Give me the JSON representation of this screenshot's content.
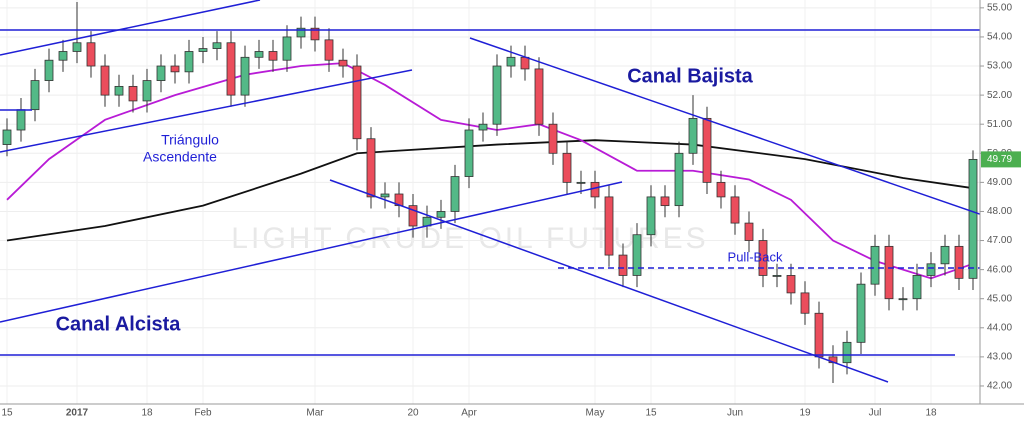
{
  "chart_data": {
    "type": "candlestick",
    "watermark": "LIGHT CRUDE OIL FUTURES",
    "categories": [
      "15",
      null,
      null,
      null,
      null,
      "2017",
      null,
      null,
      null,
      null,
      "18",
      null,
      null,
      null,
      "Feb",
      null,
      null,
      null,
      null,
      null,
      null,
      null,
      "Mar",
      null,
      null,
      null,
      null,
      null,
      null,
      "20",
      null,
      null,
      null,
      "Apr",
      null,
      null,
      null,
      null,
      null,
      null,
      null,
      null,
      "May",
      null,
      null,
      null,
      "15",
      null,
      null,
      null,
      null,
      null,
      "Jun",
      null,
      null,
      null,
      null,
      "19",
      null,
      null,
      null,
      null,
      "Jul",
      null,
      null,
      null,
      "18",
      null,
      null,
      null
    ],
    "open": [
      50.3,
      50.8,
      51.5,
      52.5,
      53.2,
      53.5,
      53.8,
      53.0,
      52.0,
      52.3,
      51.8,
      52.5,
      53.0,
      52.8,
      53.5,
      53.6,
      53.8,
      52.0,
      53.3,
      53.5,
      53.2,
      54.0,
      54.3,
      53.9,
      53.2,
      53.0,
      50.5,
      48.5,
      48.6,
      48.2,
      47.5,
      47.8,
      48.0,
      49.2,
      50.8,
      51.0,
      53.0,
      53.3,
      52.9,
      51.0,
      50.0,
      49.0,
      49.0,
      48.5,
      46.5,
      45.8,
      47.2,
      48.5,
      48.2,
      50.0,
      51.2,
      49.0,
      48.5,
      47.6,
      47.0,
      45.8,
      45.8,
      45.2,
      44.5,
      43.0,
      42.8,
      43.5,
      45.5,
      46.8,
      45.0,
      45.0,
      45.8,
      46.2,
      46.8,
      45.7
    ],
    "high": [
      51.2,
      51.9,
      52.9,
      53.6,
      53.9,
      55.2,
      54.2,
      53.4,
      52.7,
      52.7,
      52.9,
      53.4,
      53.4,
      53.9,
      54.0,
      54.2,
      54.2,
      53.7,
      53.9,
      53.9,
      54.4,
      54.7,
      54.7,
      54.3,
      53.6,
      53.4,
      50.9,
      49.0,
      49.0,
      48.6,
      48.2,
      48.4,
      49.6,
      51.2,
      51.4,
      53.4,
      53.7,
      53.7,
      53.3,
      51.4,
      50.4,
      49.4,
      49.4,
      48.9,
      46.9,
      47.6,
      48.9,
      48.9,
      50.4,
      52.0,
      51.6,
      49.4,
      48.9,
      48.0,
      47.4,
      46.2,
      46.2,
      45.6,
      44.9,
      43.4,
      43.9,
      45.9,
      47.2,
      47.2,
      45.4,
      46.2,
      46.6,
      47.2,
      47.2,
      50.1
    ],
    "low": [
      49.9,
      50.4,
      51.1,
      52.1,
      52.8,
      53.1,
      52.6,
      51.6,
      51.6,
      51.4,
      51.4,
      52.1,
      52.4,
      52.4,
      53.1,
      53.2,
      51.6,
      51.6,
      52.9,
      52.8,
      52.8,
      53.6,
      53.5,
      52.8,
      52.6,
      50.1,
      48.1,
      48.1,
      47.8,
      47.1,
      47.1,
      47.4,
      47.6,
      48.8,
      50.4,
      50.6,
      52.6,
      52.5,
      50.6,
      49.6,
      48.6,
      48.6,
      48.1,
      46.1,
      45.4,
      45.4,
      46.8,
      47.8,
      47.8,
      49.6,
      48.6,
      48.1,
      47.2,
      46.6,
      45.4,
      45.4,
      44.8,
      44.1,
      42.6,
      42.1,
      42.4,
      43.1,
      45.1,
      44.6,
      44.6,
      44.6,
      45.4,
      45.8,
      45.3,
      45.3
    ],
    "close": [
      50.8,
      51.5,
      52.5,
      53.2,
      53.5,
      53.8,
      53.0,
      52.0,
      52.3,
      51.8,
      52.5,
      53.0,
      52.8,
      53.5,
      53.6,
      53.8,
      52.0,
      53.3,
      53.5,
      53.2,
      54.0,
      54.3,
      53.9,
      53.2,
      53.0,
      50.5,
      48.5,
      48.6,
      48.2,
      47.5,
      47.8,
      48.0,
      49.2,
      50.8,
      51.0,
      53.0,
      53.3,
      52.9,
      51.0,
      50.0,
      49.0,
      49.0,
      48.5,
      46.5,
      45.8,
      47.2,
      48.5,
      48.2,
      50.0,
      51.2,
      49.0,
      48.5,
      47.6,
      47.0,
      45.8,
      45.8,
      45.2,
      44.5,
      43.0,
      42.8,
      43.5,
      45.5,
      46.8,
      45.0,
      45.0,
      45.8,
      46.2,
      46.8,
      45.7,
      49.79
    ],
    "up_color": "#53b987",
    "down_color": "#eb4d5c",
    "last_color": "#4caf50",
    "overlays": [
      {
        "color": "#111111",
        "x": [
          0,
          7,
          14,
          21,
          25,
          35,
          42,
          49,
          57,
          64,
          69
        ],
        "values": [
          47.0,
          47.5,
          48.2,
          49.3,
          50.0,
          50.3,
          50.45,
          50.3,
          49.8,
          49.15,
          48.8
        ]
      },
      {
        "color": "#b81bd6",
        "x": [
          0,
          3,
          7,
          12,
          17,
          21,
          24,
          27,
          31,
          35,
          38,
          41,
          45,
          49,
          53,
          56,
          59,
          62,
          66,
          69
        ],
        "values": [
          48.4,
          49.8,
          51.15,
          52.0,
          52.7,
          53.0,
          53.1,
          52.35,
          51.15,
          50.8,
          51.0,
          50.45,
          49.4,
          49.4,
          49.1,
          48.4,
          47.0,
          46.3,
          45.7,
          46.2
        ]
      }
    ],
    "annotations": [
      "Triángulo",
      "Ascendente",
      "Canal Bajista",
      "Canal Alcista",
      "Pull-Back"
    ],
    "ylim": [
      41.38,
      55.27
    ],
    "yticks": [
      {
        "value": 42,
        "label": "42.00"
      },
      {
        "value": 43,
        "label": "43.00"
      },
      {
        "value": 44,
        "label": "44.00"
      },
      {
        "value": 45,
        "label": "45.00"
      },
      {
        "value": 46,
        "label": "46.00"
      },
      {
        "value": 47,
        "label": "47.00"
      },
      {
        "value": 48,
        "label": "48.00"
      },
      {
        "value": 49,
        "label": "49.00"
      },
      {
        "value": 50,
        "label": "50.00"
      },
      {
        "value": 51,
        "label": "51.00"
      },
      {
        "value": 52,
        "label": "52.00"
      },
      {
        "value": 53,
        "label": "53.00"
      },
      {
        "value": 54,
        "label": "54.00"
      },
      {
        "value": 55,
        "label": "55.00"
      }
    ],
    "grid": true
  }
}
